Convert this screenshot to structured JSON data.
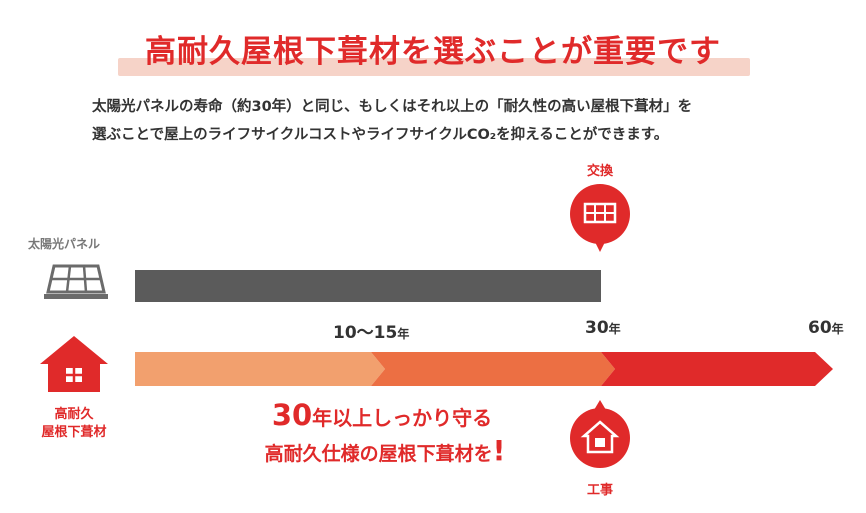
{
  "heading": {
    "title": "高耐久屋根下葺材を選ぶことが重要です"
  },
  "description": {
    "line1": "太陽光パネルの寿命（約30年）と同じ、もしくはそれ以上の「耐久性の高い屋根下葺材」を",
    "line2": "選ぶことで屋上のライフサイクルコストやライフサイクルCO₂を抑えることができます。"
  },
  "timeline": {
    "solar_label": "太陽光パネル",
    "roof_label_line1": "高耐久",
    "roof_label_line2": "屋根下葺材",
    "replace_label": "交換",
    "construction_label": "工事",
    "ticks": [
      {
        "num": "10〜15",
        "unit": "年"
      },
      {
        "num": "30",
        "unit": "年"
      },
      {
        "num": "60",
        "unit": "年"
      }
    ]
  },
  "promo": {
    "line1_big": "30",
    "line1_rest": "年以上しっかり守る",
    "line2": "高耐久仕様の屋根下葺材を",
    "line2_bang": "!"
  },
  "colors": {
    "accent": "#e02a2a",
    "gray_bar": "#5b5b5b",
    "seg_light": "#f2a06e",
    "seg_mid": "#ec6f43",
    "seg_dark": "#e02a2a"
  }
}
